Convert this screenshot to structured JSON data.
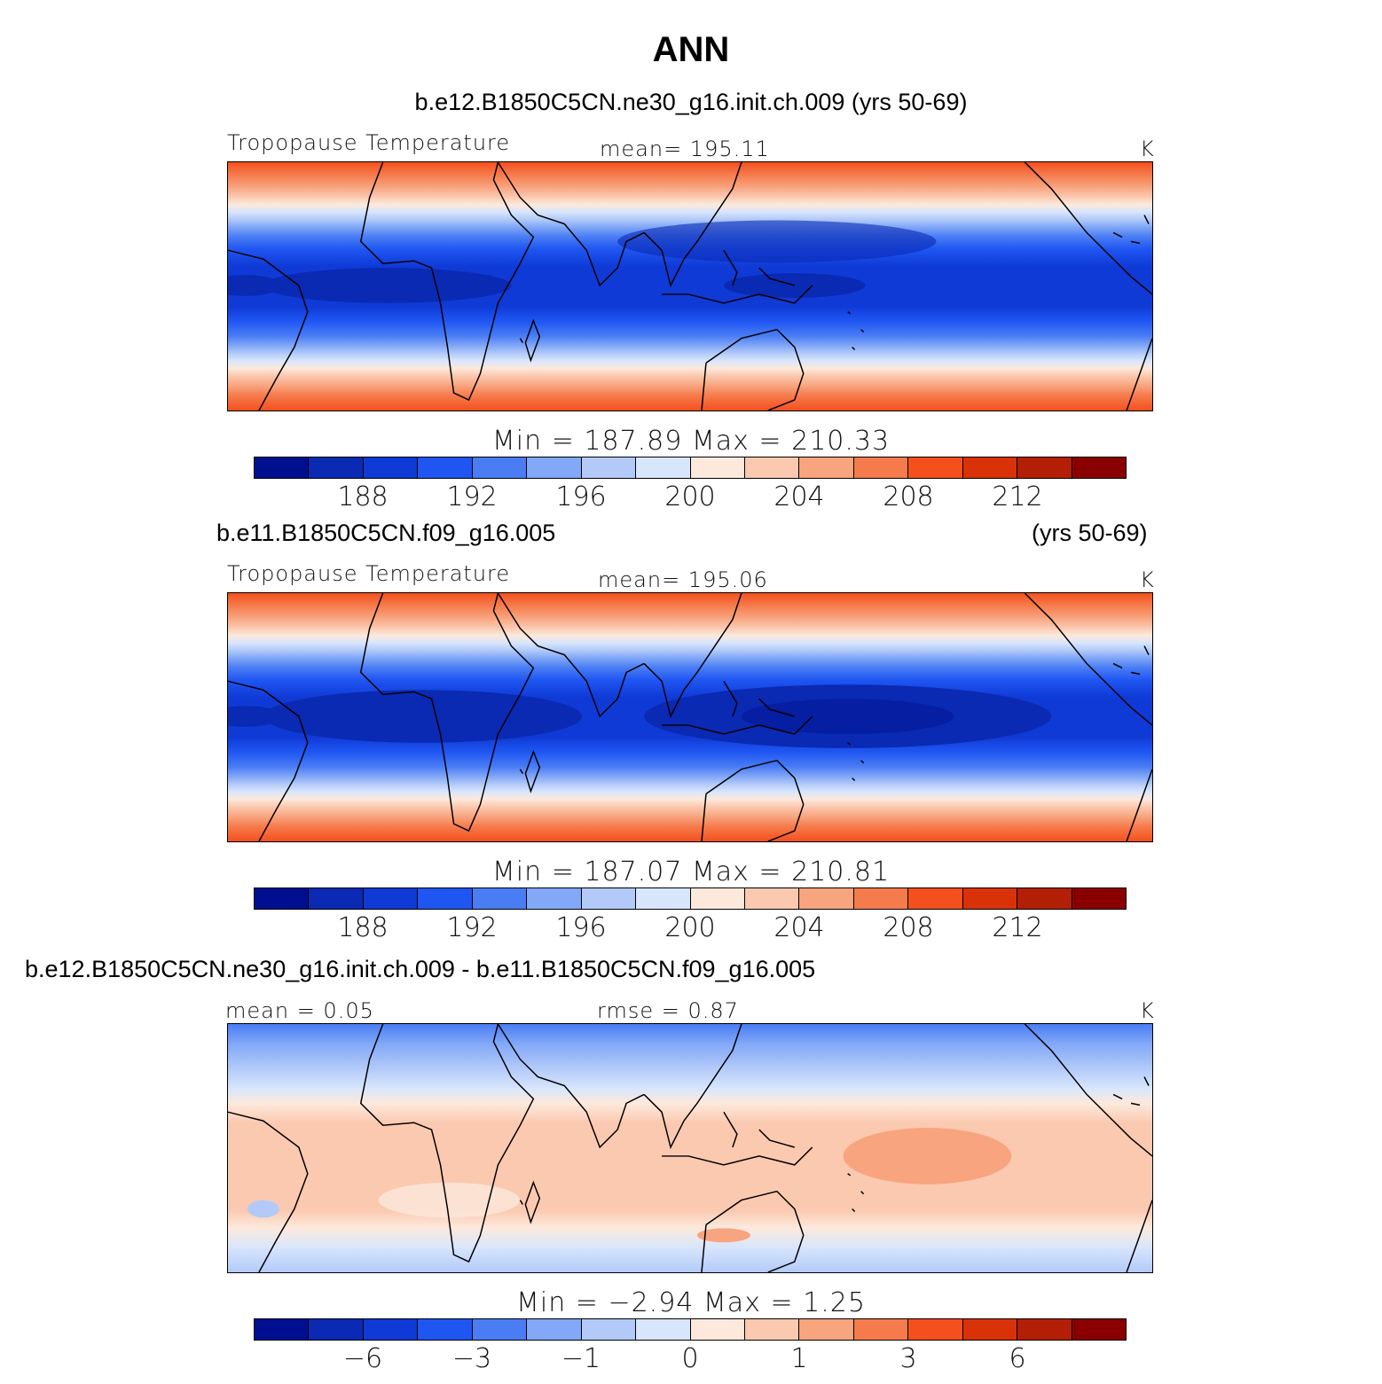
{
  "title": "ANN",
  "panels": [
    {
      "case_title": "b.e12.B1850C5CN.ne30_g16.init.ch.009 (yrs 50-69)",
      "left_label": "Tropopause Temperature",
      "center_label": "mean=  195.11",
      "units": "K",
      "stats": "Min  =  187.89  Max  =  210.33",
      "ticks": [
        "188",
        "192",
        "196",
        "200",
        "204",
        "208",
        "212"
      ],
      "field": {
        "kind": "absolute",
        "min": 187.89,
        "max": 210.33,
        "mean": 195.11
      }
    },
    {
      "case_title": "b.e11.B1850C5CN.f09_g16.005",
      "case_years": "(yrs 50-69)",
      "left_label": "Tropopause Temperature",
      "center_label": "mean=  195.06",
      "units": "K",
      "stats": "Min  =  187.07  Max  =  210.81",
      "ticks": [
        "188",
        "192",
        "196",
        "200",
        "204",
        "208",
        "212"
      ],
      "field": {
        "kind": "absolute",
        "min": 187.07,
        "max": 210.81,
        "mean": 195.06
      }
    },
    {
      "case_title": "b.e12.B1850C5CN.ne30_g16.init.ch.009 - b.e11.B1850C5CN.f09_g16.005",
      "left_label": "mean =    0.05",
      "center_label": "rmse =    0.87",
      "units": "K",
      "stats": "Min  =   −2.94  Max  =    1.25",
      "ticks": [
        "−6",
        "−3",
        "−1",
        "0",
        "1",
        "3",
        "6"
      ],
      "field": {
        "kind": "difference",
        "min": -2.94,
        "max": 1.25,
        "mean": 0.05,
        "rmse": 0.87
      }
    }
  ],
  "palette": [
    "#000f8f",
    "#0a2ab3",
    "#0f3ad6",
    "#1f56f2",
    "#4a7df4",
    "#82a8f7",
    "#b3caf9",
    "#d8e6fc",
    "#fde9dc",
    "#fbc9b0",
    "#f8a47f",
    "#f67b4c",
    "#f3501d",
    "#da3208",
    "#b31f06",
    "#8a0000"
  ]
}
